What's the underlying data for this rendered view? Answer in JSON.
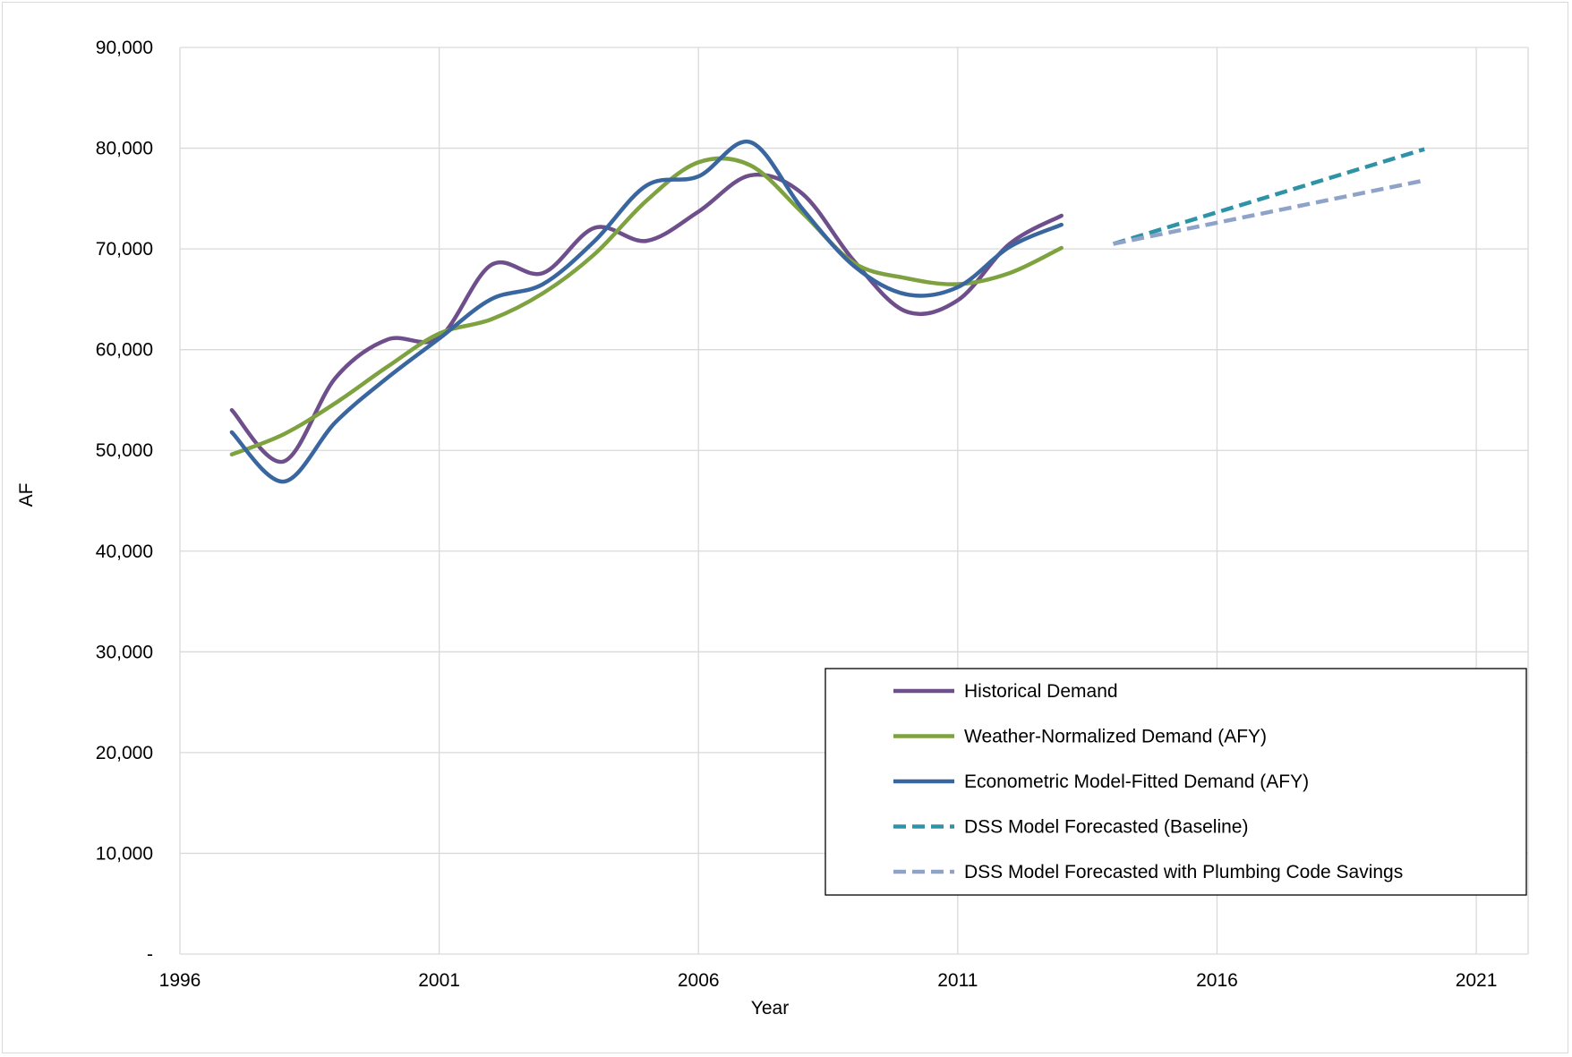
{
  "chart_data": {
    "type": "line",
    "xlabel": "Year",
    "ylabel": "AF",
    "xlim": [
      1996,
      2022
    ],
    "ylim": [
      0,
      90000
    ],
    "x_ticks": [
      1996,
      2001,
      2006,
      2011,
      2016,
      2021
    ],
    "x_tick_labels": [
      "1996",
      "2001",
      "2006",
      "2011",
      "2016",
      "2021"
    ],
    "y_ticks": [
      0,
      10000,
      20000,
      30000,
      40000,
      50000,
      60000,
      70000,
      80000,
      90000
    ],
    "y_tick_labels": [
      "-",
      "10,000",
      "20,000",
      "30,000",
      "40,000",
      "50,000",
      "60,000",
      "70,000",
      "80,000",
      "90,000"
    ],
    "grid": true,
    "legend_position": "bottom-right",
    "series": [
      {
        "name": "Historical Demand",
        "color": "#6f4e8c",
        "style": "solid",
        "smooth": true,
        "x": [
          1997,
          1998,
          1999,
          2000,
          2001,
          2002,
          2003,
          2004,
          2005,
          2006,
          2007,
          2008,
          2009,
          2010,
          2011,
          2012,
          2013
        ],
        "y": [
          54000,
          48900,
          57200,
          61000,
          61200,
          68400,
          67600,
          72100,
          70800,
          73700,
          77300,
          75500,
          68800,
          63800,
          64900,
          70500,
          73300
        ]
      },
      {
        "name": "Weather-Normalized Demand (AFY)",
        "color": "#7ea23f",
        "style": "solid",
        "smooth": true,
        "x": [
          1997,
          1998,
          1999,
          2000,
          2001,
          2002,
          2003,
          2004,
          2005,
          2006,
          2007,
          2008,
          2009,
          2010,
          2011,
          2012,
          2013
        ],
        "y": [
          49600,
          51600,
          54700,
          58300,
          61600,
          63000,
          65600,
          69500,
          74800,
          78600,
          78300,
          73600,
          68600,
          67100,
          66500,
          67600,
          70100
        ]
      },
      {
        "name": "Econometric Model-Fitted Demand (AFY)",
        "color": "#3a66a0",
        "style": "solid",
        "smooth": true,
        "x": [
          1997,
          1998,
          1999,
          2000,
          2001,
          2002,
          2003,
          2004,
          2005,
          2006,
          2007,
          2008,
          2009,
          2010,
          2011,
          2012,
          2013
        ],
        "y": [
          51800,
          46900,
          52800,
          57200,
          61100,
          65000,
          66500,
          70800,
          76300,
          77200,
          80600,
          74000,
          68300,
          65500,
          66200,
          70200,
          72400
        ]
      },
      {
        "name": "DSS Model Forecasted (Baseline)",
        "color": "#2e93a6",
        "style": "dashed",
        "smooth": false,
        "x": [
          2014,
          2020
        ],
        "y": [
          70500,
          79900
        ]
      },
      {
        "name": "DSS Model Forecasted with Plumbing Code Savings",
        "color": "#8fa2c8",
        "style": "dashed",
        "smooth": false,
        "x": [
          2014,
          2020
        ],
        "y": [
          70500,
          76800
        ]
      }
    ]
  }
}
